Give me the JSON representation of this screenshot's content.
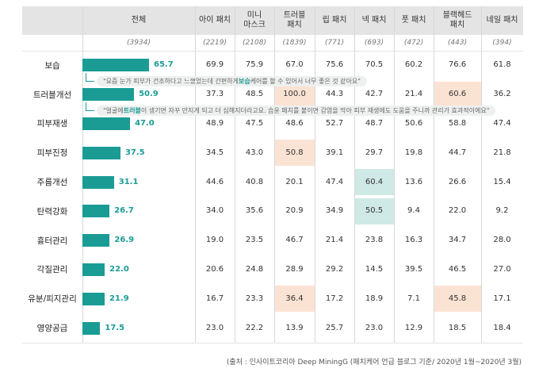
{
  "chart_data": {
    "type": "table",
    "columns": [
      {
        "label": "전체",
        "count": "(3934)"
      },
      {
        "label": "아이 패치",
        "count": "(2219)"
      },
      {
        "label": "미니\n마스크",
        "count": "(2108)"
      },
      {
        "label": "트러블\n패치",
        "count": "(1839)"
      },
      {
        "label": "립 패치",
        "count": "(771)"
      },
      {
        "label": "넥 패치",
        "count": "(693)"
      },
      {
        "label": "풋 패치",
        "count": "(472)"
      },
      {
        "label": "블랙헤드\n패치",
        "count": "(443)"
      },
      {
        "label": "네일 패치",
        "count": "(394)"
      }
    ],
    "rows": [
      {
        "label": "보습",
        "total": 65.7,
        "values": [
          "69.9",
          "75.9",
          "67.0",
          "75.6",
          "70.5",
          "60.2",
          "76.6",
          "61.8"
        ]
      },
      {
        "label": "트러블개선",
        "total": 50.9,
        "values": [
          "37.3",
          "48.5",
          "100.0",
          "44.3",
          "42.7",
          "21.4",
          "60.6",
          "36.2"
        ]
      },
      {
        "label": "피부재생",
        "total": 47.0,
        "values": [
          "48.9",
          "47.5",
          "48.6",
          "52.7",
          "48.7",
          "50.6",
          "58.8",
          "47.4"
        ]
      },
      {
        "label": "피부진정",
        "total": 37.5,
        "values": [
          "34.5",
          "43.0",
          "50.8",
          "39.1",
          "29.7",
          "19.8",
          "44.7",
          "21.8"
        ]
      },
      {
        "label": "주름개선",
        "total": 31.1,
        "values": [
          "44.6",
          "40.8",
          "20.1",
          "47.4",
          "60.4",
          "13.6",
          "26.6",
          "15.4"
        ]
      },
      {
        "label": "탄력강화",
        "total": 26.7,
        "values": [
          "34.0",
          "35.6",
          "20.9",
          "34.9",
          "50.5",
          "9.4",
          "22.0",
          "9.2"
        ]
      },
      {
        "label": "흉터관리",
        "total": 26.9,
        "values": [
          "19.0",
          "23.5",
          "46.7",
          "21.4",
          "23.8",
          "16.3",
          "34.7",
          "28.0"
        ]
      },
      {
        "label": "각질관리",
        "total": 22.0,
        "values": [
          "20.6",
          "24.8",
          "28.9",
          "29.2",
          "14.5",
          "39.5",
          "46.5",
          "27.0"
        ]
      },
      {
        "label": "유분/피지관리",
        "total": 21.9,
        "values": [
          "16.7",
          "23.3",
          "36.4",
          "17.2",
          "18.9",
          "7.1",
          "45.8",
          "17.1"
        ]
      },
      {
        "label": "영양공급",
        "total": 17.5,
        "values": [
          "23.0",
          "22.2",
          "13.9",
          "25.7",
          "23.0",
          "12.9",
          "18.5",
          "18.4"
        ]
      }
    ],
    "total_labels": [
      "65.7",
      "50.9",
      "47.0",
      "37.5",
      "31.1",
      "26.7",
      "26.9",
      "22.0",
      "21.9",
      "17.5"
    ],
    "highlights": [
      {
        "row": 1,
        "col": 3,
        "color": "#fbe3d4"
      },
      {
        "row": 1,
        "col": 7,
        "color": "#fbe3d4"
      },
      {
        "row": 3,
        "col": 3,
        "color": "#fbe3d4"
      },
      {
        "row": 8,
        "col": 3,
        "color": "#fbe3d4"
      },
      {
        "row": 8,
        "col": 7,
        "color": "#fbe3d4"
      },
      {
        "row": 4,
        "col": 5,
        "color": "#cfe9e6"
      },
      {
        "row": 5,
        "col": 5,
        "color": "#cfe9e6"
      }
    ],
    "bar_color": "#1a9c95",
    "quotes": [
      {
        "pre": "\"요즘 눈가 피부가 건조하다고 느꼈었는데 간편하게 ",
        "key": "보습",
        "post": " 케어를 할 수 있어서 너무 좋은 것 같아요\""
      },
      {
        "pre": "\"얼굴에 ",
        "key": "트러블",
        "post": "이 생기면 자꾸 만지게 되고 더 심해지더라고요. 습윤 패치를 붙이면 감염을 막아 피부 재생에도 도움을 주니까 관리가 효과적이에요\""
      }
    ]
  },
  "source_note": "(출처 : 인사이트코리아 Deep MiningG (패치케어 언급 블로그 기준/ 2020년 1월~2020년 3월)"
}
